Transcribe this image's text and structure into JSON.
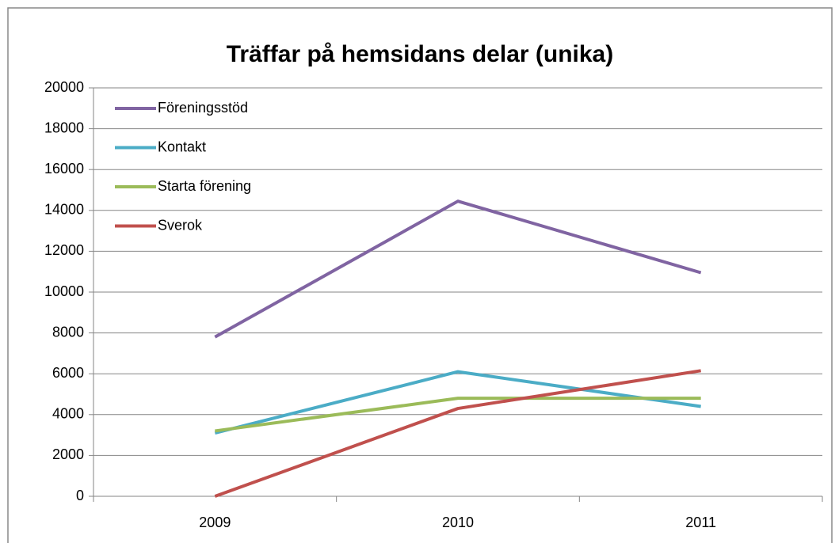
{
  "chart_data": {
    "type": "line",
    "title": "Träffar på hemsidans delar (unika)",
    "categories": [
      "2009",
      "2010",
      "2011"
    ],
    "series": [
      {
        "name": "Föreningsstöd",
        "color": "#8064a2",
        "values": [
          7800,
          14450,
          10950
        ]
      },
      {
        "name": "Kontakt",
        "color": "#4bacc6",
        "values": [
          3100,
          6100,
          4400
        ]
      },
      {
        "name": "Starta förening",
        "color": "#9bbb59",
        "values": [
          3200,
          4800,
          4800
        ]
      },
      {
        "name": "Sverok",
        "color": "#c0504d",
        "values": [
          0,
          4300,
          6150
        ]
      }
    ],
    "ylim": [
      0,
      20000
    ],
    "yticks": [
      0,
      2000,
      4000,
      6000,
      8000,
      10000,
      12000,
      14000,
      16000,
      18000,
      20000
    ],
    "grid": true,
    "legend": "top-left"
  }
}
